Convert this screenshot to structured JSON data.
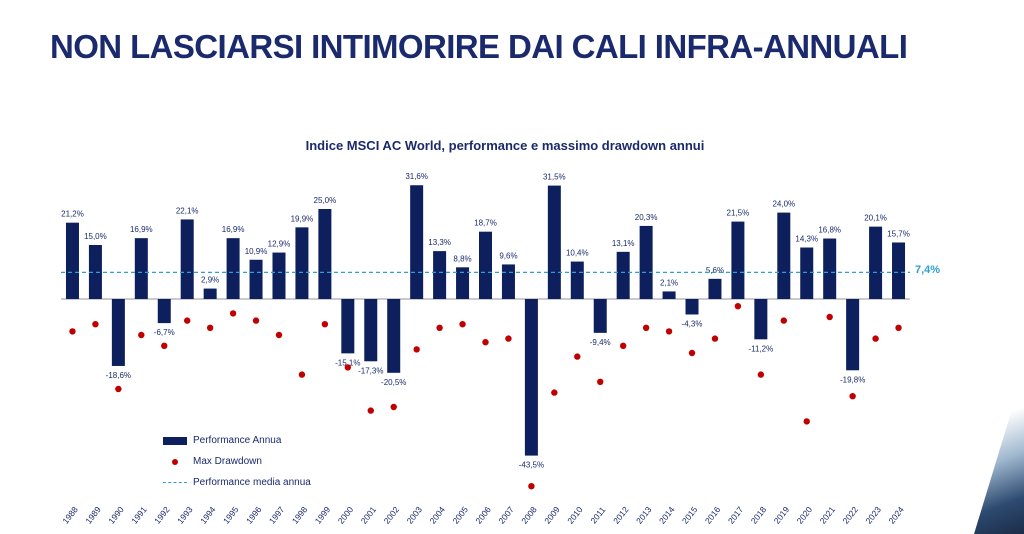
{
  "page": {
    "title": "NON LASCIARSI INTIMORIRE DAI CALI INFRA-ANNUALI"
  },
  "colors": {
    "bar": "#0d1f5c",
    "drawdown": "#c00000",
    "average": "#2e9ed4",
    "title": "#1a2a6c"
  },
  "chart_data": {
    "type": "bar",
    "title": "Indice MSCI AC World, performance e massimo drawdown annui",
    "categories": [
      "1988",
      "1989",
      "1990",
      "1991",
      "1992",
      "1993",
      "1994",
      "1995",
      "1996",
      "1997",
      "1998",
      "1999",
      "2000",
      "2001",
      "2002",
      "2003",
      "2004",
      "2005",
      "2006",
      "2007",
      "2008",
      "2009",
      "2010",
      "2011",
      "2012",
      "2013",
      "2014",
      "2015",
      "2016",
      "2017",
      "2018",
      "2019",
      "2020",
      "2021",
      "2022",
      "2023",
      "2024"
    ],
    "series": [
      {
        "name": "Performance Annua",
        "kind": "bar",
        "values": [
          21.2,
          15.0,
          -18.6,
          16.9,
          -6.7,
          22.1,
          2.9,
          16.9,
          10.9,
          12.9,
          19.9,
          25.0,
          -15.1,
          -17.3,
          -20.5,
          31.6,
          13.3,
          8.8,
          18.7,
          9.6,
          -43.5,
          31.5,
          10.4,
          -9.4,
          13.1,
          20.3,
          2.1,
          -4.3,
          5.6,
          21.5,
          -11.2,
          24.0,
          14.3,
          16.8,
          -19.8,
          20.1,
          15.7
        ],
        "labels": [
          "21,2%",
          "15,0%",
          "-18,6%",
          "16,9%",
          "-6,7%",
          "22,1%",
          "2,9%",
          "16,9%",
          "10,9%",
          "12,9%",
          "19,9%",
          "25,0%",
          "-15,1%",
          "-17,3%",
          "-20,5%",
          "31,6%",
          "13,3%",
          "8,8%",
          "18,7%",
          "9,6%",
          "-43,5%",
          "31,5%",
          "10,4%",
          "-9,4%",
          "13,1%",
          "20,3%",
          "2,1%",
          "-4,3%",
          "5,6%",
          "21,5%",
          "-11,2%",
          "24,0%",
          "14,3%",
          "16,8%",
          "-19,8%",
          "20,1%",
          "15,7%"
        ]
      },
      {
        "name": "Max Drawdown",
        "kind": "scatter",
        "values": [
          -9,
          -7,
          -25,
          -10,
          -13,
          -6,
          -8,
          -4,
          -6,
          -10,
          -21,
          -7,
          -19,
          -31,
          -30,
          -14,
          -8,
          -7,
          -12,
          -11,
          -52,
          -26,
          -16,
          -23,
          -13,
          -8,
          -9,
          -15,
          -11,
          -2,
          -21,
          -6,
          -34,
          -5,
          -27,
          -11,
          -8
        ]
      },
      {
        "name": "Performance media annua",
        "kind": "line",
        "value": 7.4,
        "label": "7,4%"
      }
    ],
    "ylim": [
      -52,
      35
    ],
    "grid": false,
    "legend": "bottom-left"
  }
}
